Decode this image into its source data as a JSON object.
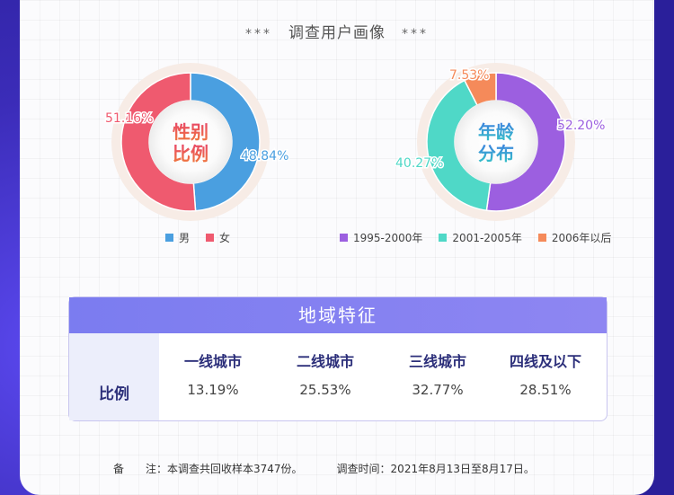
{
  "header": {
    "stars_left": "***",
    "title": "调查用户画像",
    "stars_right": "***"
  },
  "chart_data": [
    {
      "type": "pie",
      "center_label": [
        "性别",
        "比例"
      ],
      "series": [
        {
          "name": "男",
          "value": 48.84,
          "label": "48.84%",
          "color": "#4a9fe0"
        },
        {
          "name": "女",
          "value": 51.16,
          "label": "51.16%",
          "color": "#ef5a6f"
        }
      ]
    },
    {
      "type": "pie",
      "center_label": [
        "年龄",
        "分布"
      ],
      "series": [
        {
          "name": "1995-2000年",
          "value": 52.2,
          "label": "52.20%",
          "color": "#9c5fe0"
        },
        {
          "name": "2001-2005年",
          "value": 40.27,
          "label": "40.27%",
          "color": "#4fd8c7"
        },
        {
          "name": "2006年以后",
          "value": 7.53,
          "label": "7.53%",
          "color": "#f58a5a"
        }
      ]
    },
    {
      "type": "table",
      "title": "地域特征",
      "row_label": "比例",
      "columns": [
        "一线城市",
        "二线城市",
        "三线城市",
        "四线及以下"
      ],
      "values": [
        "13.19%",
        "25.53%",
        "32.77%",
        "28.51%"
      ]
    }
  ],
  "footer": {
    "note": "备　　注：本调查共回收样本3747份。",
    "time": "调查时间：2021年8月13日至8月17日。"
  }
}
